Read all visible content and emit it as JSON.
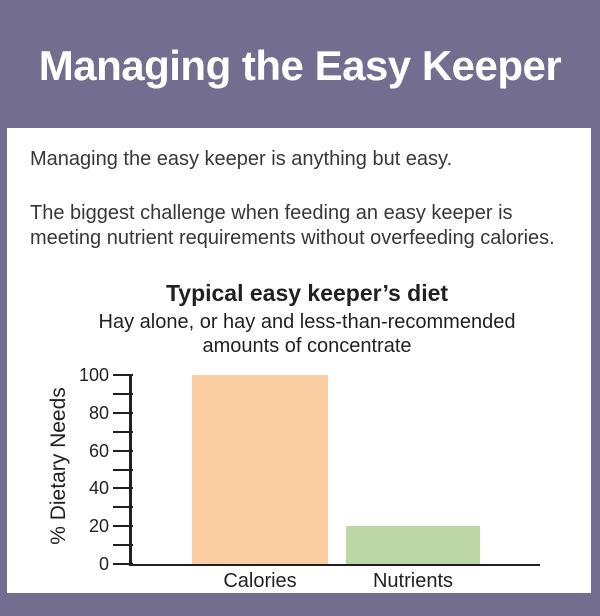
{
  "page": {
    "title": "Managing the Easy Keeper"
  },
  "intro": {
    "paragraph1": "Managing the easy keeper is anything but easy.",
    "paragraph2": "The biggest challenge when feeding an easy keeper is meeting nutrient requirements without overfeeding calories.",
    "paragraph2_lines": [
      "The biggest challenge when feeding an easy keeper is",
      "meeting nutrient requirements without overfeeding calories."
    ]
  },
  "chart_data": {
    "type": "bar",
    "title": "Typical easy keeper’s diet",
    "subtitle": "Hay alone, or hay and less-than-recommended amounts of concentrate",
    "subtitle_lines": [
      "Hay alone, or hay and less-than-recommended",
      "amounts of concentrate"
    ],
    "categories": [
      "Calories",
      "Nutrients"
    ],
    "values": [
      100,
      20
    ],
    "bar_colors": [
      "#facda2",
      "#bdd6a5"
    ],
    "ylabel": "% Dietary Needs",
    "xlabel": "",
    "ylim": [
      0,
      100
    ],
    "ytick_step": 10,
    "ytick_label_step": 20,
    "ytick_labels_shown": [
      "0",
      "20",
      "40",
      "60",
      "80",
      "100"
    ],
    "grid": false,
    "legend": "none"
  },
  "colors": {
    "background": "#736d8f",
    "card": "#ffffff",
    "header_text": "#ffffff",
    "body_text": "#3a3637",
    "chart_ink": "#231f20"
  }
}
